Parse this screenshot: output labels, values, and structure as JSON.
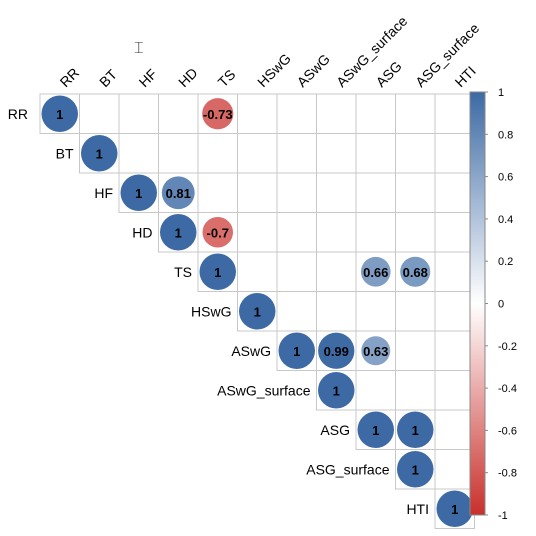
{
  "chart_data": {
    "type": "heatmap",
    "subtype": "upper-triangular correlation matrix (circles)",
    "variables": [
      "RR",
      "BT",
      "HF",
      "HD",
      "TS",
      "HSwG",
      "ASwG",
      "ASwG_surface",
      "ASG",
      "ASG_surface",
      "HTI"
    ],
    "cells": [
      {
        "row": "RR",
        "col": "RR",
        "value": 1
      },
      {
        "row": "RR",
        "col": "TS",
        "value": -0.73
      },
      {
        "row": "BT",
        "col": "BT",
        "value": 1
      },
      {
        "row": "HF",
        "col": "HF",
        "value": 1
      },
      {
        "row": "HF",
        "col": "HD",
        "value": 0.81
      },
      {
        "row": "HD",
        "col": "HD",
        "value": 1
      },
      {
        "row": "HD",
        "col": "TS",
        "value": -0.7
      },
      {
        "row": "TS",
        "col": "TS",
        "value": 1
      },
      {
        "row": "TS",
        "col": "ASG",
        "value": 0.66
      },
      {
        "row": "TS",
        "col": "ASG_surface",
        "value": 0.68
      },
      {
        "row": "HSwG",
        "col": "HSwG",
        "value": 1
      },
      {
        "row": "ASwG",
        "col": "ASwG",
        "value": 1
      },
      {
        "row": "ASwG",
        "col": "ASwG_surface",
        "value": 0.99
      },
      {
        "row": "ASwG",
        "col": "ASG",
        "value": 0.63
      },
      {
        "row": "ASwG_surface",
        "col": "ASwG_surface",
        "value": 1
      },
      {
        "row": "ASG",
        "col": "ASG",
        "value": 1
      },
      {
        "row": "ASG",
        "col": "ASG_surface",
        "value": 1
      },
      {
        "row": "ASG_surface",
        "col": "ASG_surface",
        "value": 1
      },
      {
        "row": "HTI",
        "col": "HTI",
        "value": 1
      }
    ],
    "colorbar": {
      "ticks": [
        "1",
        "0.8",
        "0.6",
        "0.4",
        "0.2",
        "0",
        "-0.2",
        "-0.4",
        "-0.6",
        "-0.8",
        "-1"
      ],
      "range": [
        -1,
        1
      ]
    },
    "colors": {
      "positive": "#3d6aa4",
      "neutral": "#ffffff",
      "negative": "#c9302c",
      "grid": "#c8c8c8"
    },
    "title": "",
    "xlabel": "",
    "ylabel": ""
  }
}
